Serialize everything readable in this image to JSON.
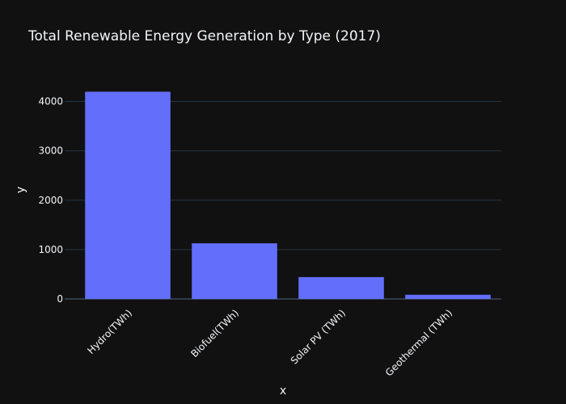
{
  "chart_data": {
    "type": "bar",
    "title": "Total Renewable Energy Generation by Type (2017)",
    "xlabel": "x",
    "ylabel": "y",
    "categories": [
      "Hydro(TWh)",
      "Biofuel(TWh)",
      "Solar PV (TWh)",
      "Geothermal (TWh)"
    ],
    "values": [
      4197,
      1127,
      443,
      85
    ],
    "ylim": [
      0,
      4418
    ],
    "yticks": [
      0,
      1000,
      2000,
      3000,
      4000
    ],
    "grid": true,
    "bar_color": "#636efa",
    "background_color": "#111111"
  }
}
